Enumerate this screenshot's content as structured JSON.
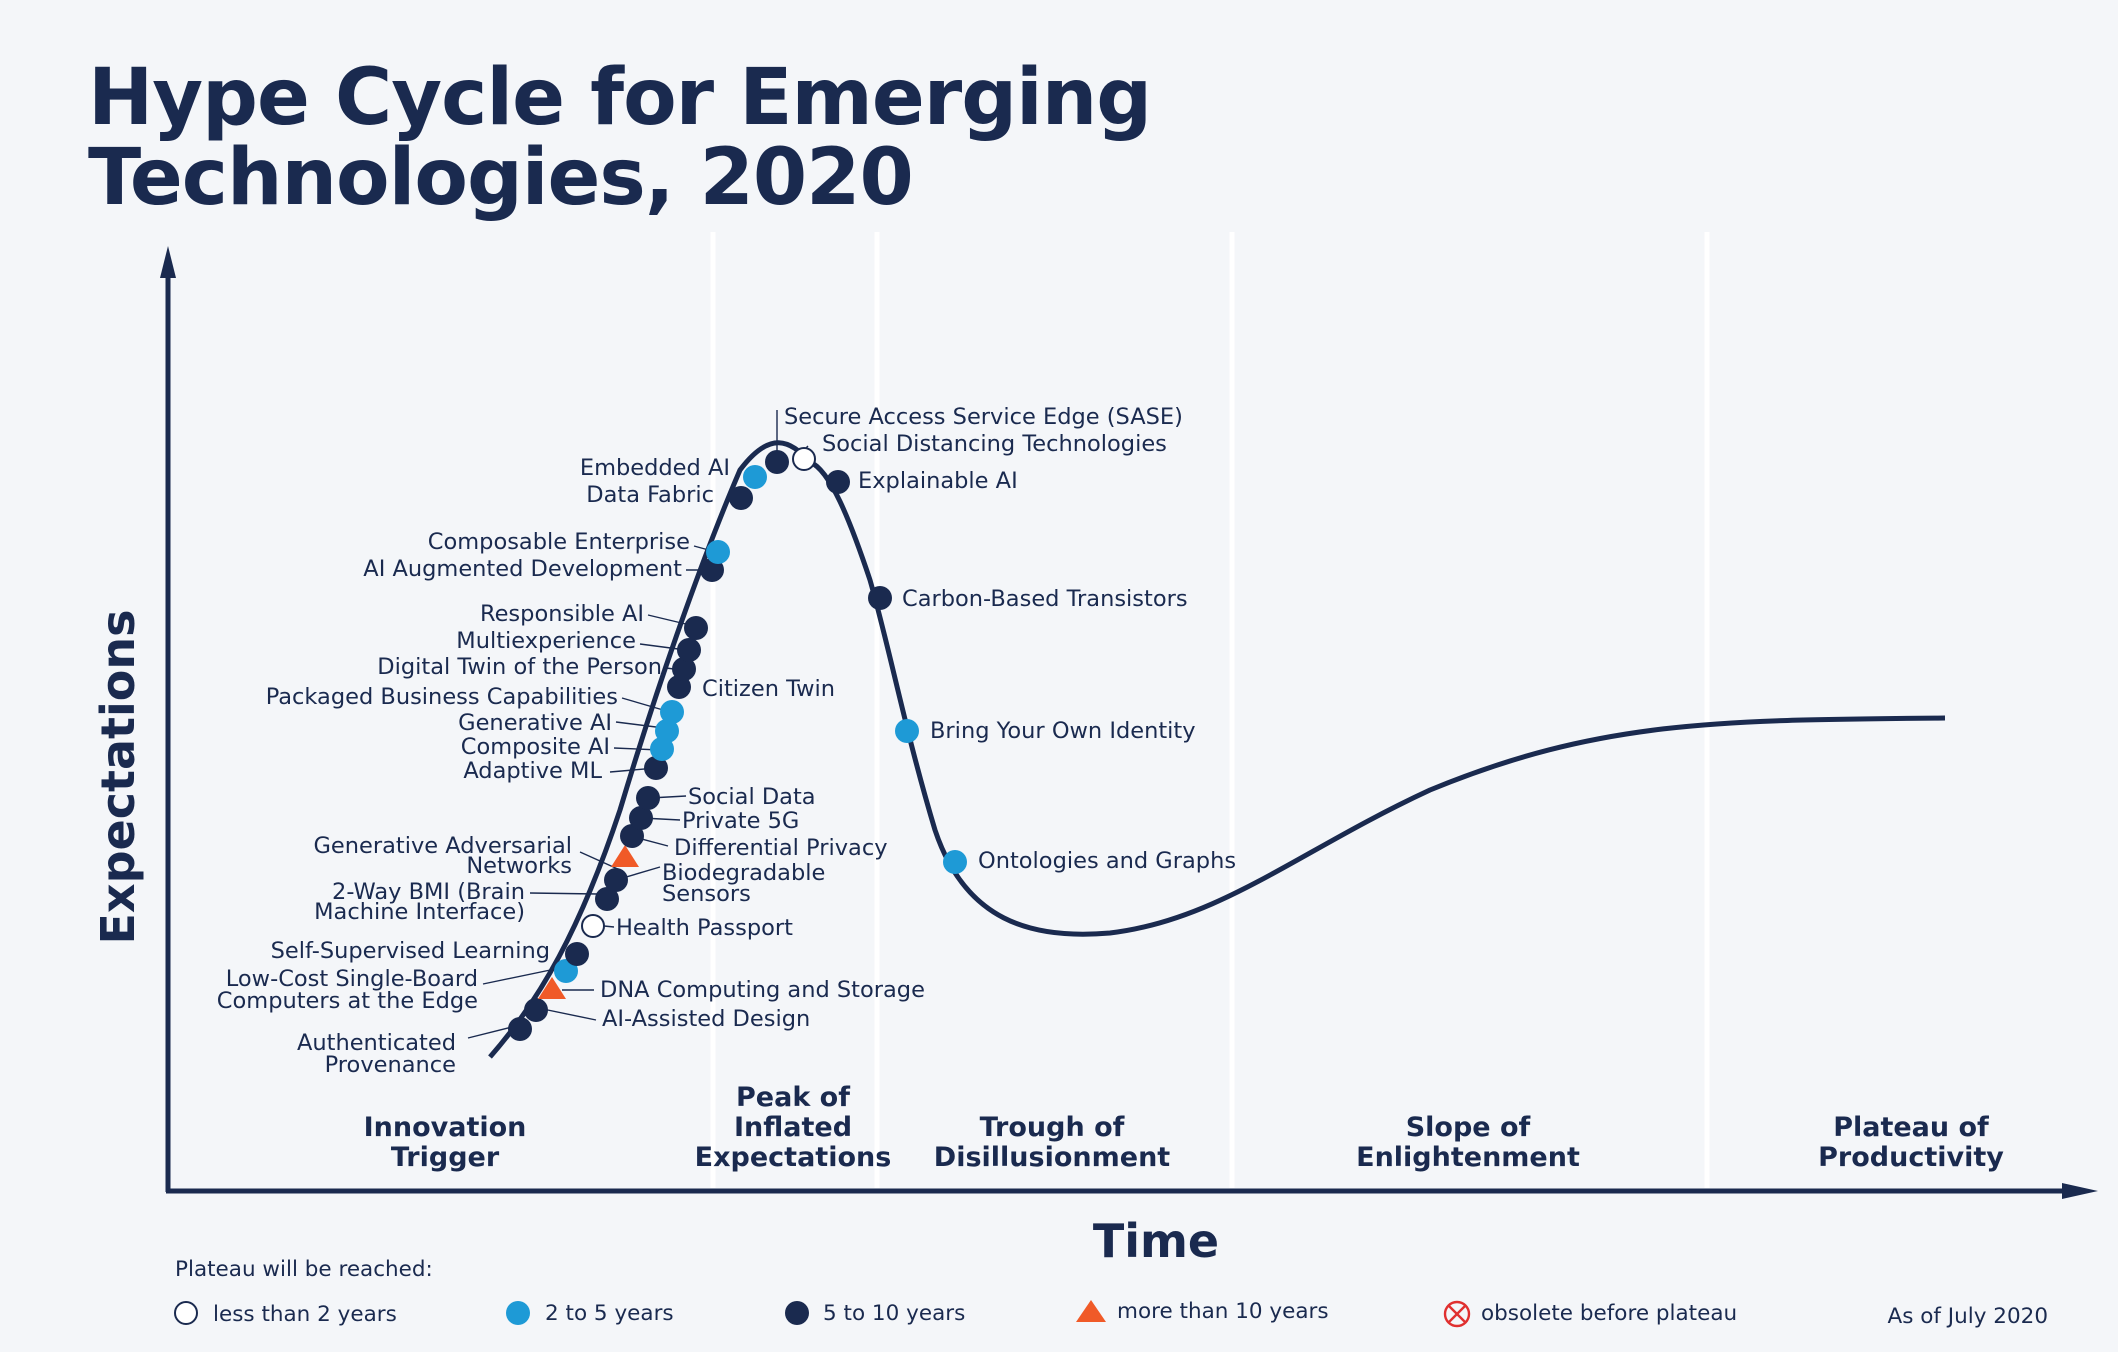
{
  "title": {
    "line1": "Hype Cycle for Emerging",
    "line2": "Technologies, 2020"
  },
  "axes": {
    "y_label": "Expectations",
    "x_label": "Time"
  },
  "phases": [
    {
      "lines": [
        "Innovation",
        "Trigger"
      ]
    },
    {
      "lines": [
        "Peak of",
        "Inflated",
        "Expectations"
      ]
    },
    {
      "lines": [
        "Trough of",
        "Disillusionment"
      ]
    },
    {
      "lines": [
        "Slope of",
        "Enlightenment"
      ]
    },
    {
      "lines": [
        "Plateau of",
        "Productivity"
      ]
    }
  ],
  "colors": {
    "navy": "#1a2a4f",
    "less_than_2": "#ffffff",
    "two_to_five": "#1e9ad6",
    "five_to_ten": "#1a2a4f",
    "more_than_10": "#f05a28",
    "obsolete": "#e03030"
  },
  "technologies": [
    {
      "name": "Authenticated Provenance",
      "type": "5to10"
    },
    {
      "name": "AI-Assisted Design",
      "type": "5to10"
    },
    {
      "name": "DNA Computing and Storage",
      "type": "more10"
    },
    {
      "name": "Low-Cost Single-Board Computers at the Edge",
      "type": "2to5"
    },
    {
      "name": "Self-Supervised Learning",
      "type": "5to10"
    },
    {
      "name": "Health Passport",
      "type": "lt2"
    },
    {
      "name": "2-Way BMI (Brain Machine Interface)",
      "type": "5to10"
    },
    {
      "name": "Biodegradable Sensors",
      "type": "5to10"
    },
    {
      "name": "Generative Adversarial Networks",
      "type": "more10"
    },
    {
      "name": "Differential Privacy",
      "type": "5to10"
    },
    {
      "name": "Private 5G",
      "type": "5to10"
    },
    {
      "name": "Social Data",
      "type": "5to10"
    },
    {
      "name": "Adaptive ML",
      "type": "5to10"
    },
    {
      "name": "Composite AI",
      "type": "2to5"
    },
    {
      "name": "Generative AI",
      "type": "2to5"
    },
    {
      "name": "Packaged Business Capabilities",
      "type": "2to5"
    },
    {
      "name": "Citizen Twin",
      "type": "5to10"
    },
    {
      "name": "Digital Twin of the Person",
      "type": "5to10"
    },
    {
      "name": "Multiexperience",
      "type": "5to10"
    },
    {
      "name": "Responsible AI",
      "type": "5to10"
    },
    {
      "name": "AI Augmented Development",
      "type": "5to10"
    },
    {
      "name": "Composable Enterprise",
      "type": "2to5"
    },
    {
      "name": "Data Fabric",
      "type": "5to10"
    },
    {
      "name": "Embedded AI",
      "type": "2to5"
    },
    {
      "name": "Secure Access Service Edge (SASE)",
      "type": "5to10"
    },
    {
      "name": "Social Distancing Technologies",
      "type": "lt2"
    },
    {
      "name": "Explainable AI",
      "type": "5to10"
    },
    {
      "name": "Carbon-Based Transistors",
      "type": "5to10"
    },
    {
      "name": "Bring Your Own Identity",
      "type": "2to5"
    },
    {
      "name": "Ontologies and Graphs",
      "type": "2to5"
    }
  ],
  "legend": {
    "heading": "Plateau will be reached:",
    "items": [
      {
        "label": "less than 2 years",
        "icon": "hollow-circle-icon"
      },
      {
        "label": "2 to 5 years",
        "icon": "light-blue-dot-icon"
      },
      {
        "label": "5 to 10 years",
        "icon": "dark-blue-dot-icon"
      },
      {
        "label": "more than 10 years",
        "icon": "orange-triangle-icon"
      },
      {
        "label": "obsolete before plateau",
        "icon": "crossed-circle-icon"
      }
    ],
    "as_of": "As of July 2020"
  }
}
